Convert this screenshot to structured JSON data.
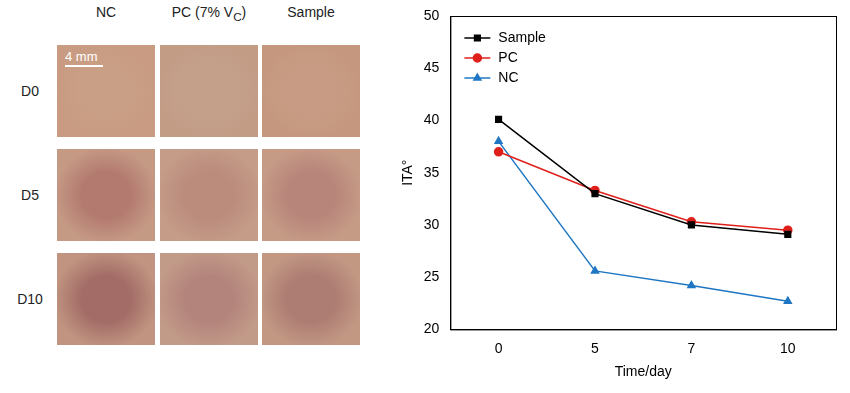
{
  "image_grid": {
    "columns": [
      "NC",
      {
        "text": "PC (7% V",
        "subscript": "C",
        "suffix": ")"
      },
      "Sample"
    ],
    "rows": [
      "D0",
      "D5",
      "D10"
    ],
    "scale_bar": "4 mm"
  },
  "chart_data": {
    "type": "line",
    "x_label": "Time/day",
    "y_label": "ITA°",
    "categories": [
      "0",
      "5",
      "7",
      "10"
    ],
    "series": [
      {
        "name": "Sample",
        "color": "#000000",
        "marker": "square",
        "values": [
          40.1,
          33.0,
          30.0,
          29.1
        ]
      },
      {
        "name": "PC",
        "color": "#e0201b",
        "marker": "circle",
        "values": [
          37.0,
          33.3,
          30.3,
          29.5
        ]
      },
      {
        "name": "NC",
        "color": "#1f77c4",
        "marker": "triangle",
        "values": [
          38.0,
          25.6,
          24.2,
          22.7
        ]
      }
    ],
    "ylim": [
      20,
      50
    ],
    "yticks": [
      20,
      25,
      30,
      35,
      40,
      45,
      50
    ],
    "grid": false,
    "legend": "top-left"
  }
}
